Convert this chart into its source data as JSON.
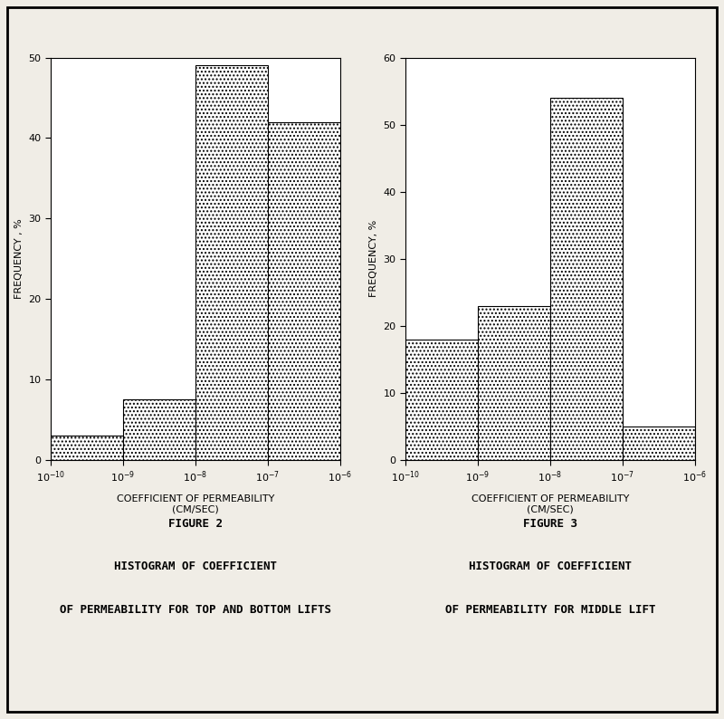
{
  "fig2": {
    "values": [
      3,
      7.5,
      49,
      42
    ],
    "bin_edges": [
      -10,
      -9,
      -8,
      -7,
      -6
    ],
    "ylim": [
      0,
      50
    ],
    "yticks": [
      0,
      10,
      20,
      30,
      40,
      50
    ],
    "ylabel": "FREQUENCY , %",
    "xlabel_line1": "COEFFICIENT OF PERMEABILITY",
    "xlabel_line2": "(CM/SEC)",
    "figure_label": "FIGURE 2",
    "caption_line1": "HISTOGRAM OF COEFFICIENT",
    "caption_line2": "OF PERMEABILITY FOR TOP AND BOTTOM LIFTS"
  },
  "fig3": {
    "values": [
      18,
      23,
      54,
      5
    ],
    "bin_edges": [
      -10,
      -9,
      -8,
      -7,
      -6
    ],
    "ylim": [
      0,
      60
    ],
    "yticks": [
      0,
      10,
      20,
      30,
      40,
      50,
      60
    ],
    "ylabel": "FREQUENCY, %",
    "xlabel_line1": "COEFFICIENT OF PERMEABILITY",
    "xlabel_line2": "(CM/SEC)",
    "figure_label": "FIGURE 3",
    "caption_line1": "HISTOGRAM OF COEFFICIENT",
    "caption_line2": "OF PERMEABILITY FOR MIDDLE LIFT"
  },
  "hatch_pattern": "....",
  "bar_facecolor": "#ffffff",
  "bar_edgecolor": "#000000",
  "bg_color": "#f0ede6",
  "plot_bg_color": "#ffffff",
  "text_color": "#000000",
  "font_family": "DejaVu Serif",
  "tick_label_fontsize": 8,
  "axis_label_fontsize": 8,
  "caption_fontsize": 9,
  "figure_label_fontsize": 9
}
